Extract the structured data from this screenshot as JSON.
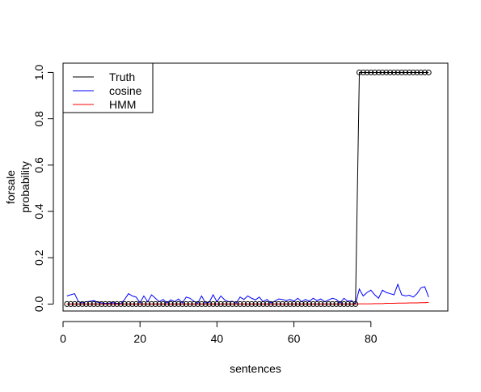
{
  "chart_data": {
    "type": "line",
    "title": "",
    "xlabel": "sentences",
    "ylabel_lines": [
      "forsale",
      "probability"
    ],
    "xlim": [
      0,
      100
    ],
    "ylim": [
      -0.03,
      1.04
    ],
    "xticks": [
      0,
      20,
      40,
      60,
      80
    ],
    "xtick_labels": [
      "0",
      "20",
      "40",
      "60",
      "80"
    ],
    "yticks": [
      0.0,
      0.2,
      0.4,
      0.6,
      0.8,
      1.0
    ],
    "ytick_labels": [
      "0.0",
      "0.2",
      "0.4",
      "0.6",
      "0.8",
      "1.0"
    ],
    "grid": false,
    "legend_position": "top-left",
    "series": [
      {
        "name": "Truth",
        "color": "#000000",
        "markers": "open-circle",
        "x": [
          1,
          2,
          3,
          4,
          5,
          6,
          7,
          8,
          9,
          10,
          11,
          12,
          13,
          14,
          15,
          16,
          17,
          18,
          19,
          20,
          21,
          22,
          23,
          24,
          25,
          26,
          27,
          28,
          29,
          30,
          31,
          32,
          33,
          34,
          35,
          36,
          37,
          38,
          39,
          40,
          41,
          42,
          43,
          44,
          45,
          46,
          47,
          48,
          49,
          50,
          51,
          52,
          53,
          54,
          55,
          56,
          57,
          58,
          59,
          60,
          61,
          62,
          63,
          64,
          65,
          66,
          67,
          68,
          69,
          70,
          71,
          72,
          73,
          74,
          75,
          76,
          77,
          78,
          79,
          80,
          81,
          82,
          83,
          84,
          85,
          86,
          87,
          88,
          89,
          90,
          91,
          92,
          93,
          94,
          95
        ],
        "y": [
          0,
          0,
          0,
          0,
          0,
          0,
          0,
          0,
          0,
          0,
          0,
          0,
          0,
          0,
          0,
          0,
          0,
          0,
          0,
          0,
          0,
          0,
          0,
          0,
          0,
          0,
          0,
          0,
          0,
          0,
          0,
          0,
          0,
          0,
          0,
          0,
          0,
          0,
          0,
          0,
          0,
          0,
          0,
          0,
          0,
          0,
          0,
          0,
          0,
          0,
          0,
          0,
          0,
          0,
          0,
          0,
          0,
          0,
          0,
          0,
          0,
          0,
          0,
          0,
          0,
          0,
          0,
          0,
          0,
          0,
          0,
          0,
          0,
          0,
          0,
          0,
          1,
          1,
          1,
          1,
          1,
          1,
          1,
          1,
          1,
          1,
          1,
          1,
          1,
          1,
          1,
          1,
          1,
          1,
          1
        ]
      },
      {
        "name": "cosine",
        "color": "#0000ff",
        "markers": "none",
        "x": [
          1,
          2,
          3,
          4,
          5,
          6,
          7,
          8,
          9,
          10,
          11,
          12,
          13,
          14,
          15,
          16,
          17,
          18,
          19,
          20,
          21,
          22,
          23,
          24,
          25,
          26,
          27,
          28,
          29,
          30,
          31,
          32,
          33,
          34,
          35,
          36,
          37,
          38,
          39,
          40,
          41,
          42,
          43,
          44,
          45,
          46,
          47,
          48,
          49,
          50,
          51,
          52,
          53,
          54,
          55,
          56,
          57,
          58,
          59,
          60,
          61,
          62,
          63,
          64,
          65,
          66,
          67,
          68,
          69,
          70,
          71,
          72,
          73,
          74,
          75,
          76,
          77,
          78,
          79,
          80,
          81,
          82,
          83,
          84,
          85,
          86,
          87,
          88,
          89,
          90,
          91,
          92,
          93,
          94,
          95
        ],
        "y": [
          0.035,
          0.04,
          0.045,
          0.01,
          0.005,
          0.01,
          0.012,
          0.015,
          0.008,
          0.005,
          0.003,
          0.004,
          0.006,
          0.003,
          0.002,
          0.02,
          0.045,
          0.035,
          0.03,
          0.005,
          0.035,
          0.01,
          0.04,
          0.025,
          0.01,
          0.02,
          0.005,
          0.018,
          0.01,
          0.022,
          0.005,
          0.03,
          0.025,
          0.012,
          0.004,
          0.035,
          0.005,
          0.008,
          0.04,
          0.01,
          0.035,
          0.018,
          0.01,
          0.012,
          0.004,
          0.03,
          0.02,
          0.035,
          0.025,
          0.018,
          0.03,
          0.01,
          0.02,
          0.005,
          0.012,
          0.022,
          0.02,
          0.015,
          0.02,
          0.012,
          0.025,
          0.01,
          0.02,
          0.012,
          0.025,
          0.015,
          0.022,
          0.01,
          0.018,
          0.025,
          0.02,
          0.005,
          0.025,
          0.012,
          0.015,
          0.0,
          0.065,
          0.035,
          0.05,
          0.06,
          0.04,
          0.025,
          0.06,
          0.05,
          0.045,
          0.04,
          0.085,
          0.04,
          0.035,
          0.038,
          0.03,
          0.045,
          0.07,
          0.075,
          0.03
        ]
      },
      {
        "name": "HMM",
        "color": "#ff0000",
        "markers": "none",
        "x": [
          1,
          2,
          3,
          4,
          5,
          6,
          7,
          8,
          9,
          10,
          11,
          12,
          13,
          14,
          15,
          16,
          17,
          18,
          19,
          20,
          21,
          22,
          23,
          24,
          25,
          26,
          27,
          28,
          29,
          30,
          31,
          32,
          33,
          34,
          35,
          36,
          37,
          38,
          39,
          40,
          41,
          42,
          43,
          44,
          45,
          46,
          47,
          48,
          49,
          50,
          51,
          52,
          53,
          54,
          55,
          56,
          57,
          58,
          59,
          60,
          61,
          62,
          63,
          64,
          65,
          66,
          67,
          68,
          69,
          70,
          71,
          72,
          73,
          74,
          75,
          76,
          77,
          78,
          79,
          80,
          81,
          82,
          83,
          84,
          85,
          86,
          87,
          88,
          89,
          90,
          91,
          92,
          93,
          94,
          95
        ],
        "y": [
          0,
          0,
          0,
          0,
          0,
          0,
          0,
          0,
          0,
          0,
          0,
          0,
          0,
          0,
          0,
          0,
          0,
          0,
          0,
          0,
          0,
          0,
          0,
          0,
          0,
          0,
          0,
          0,
          0,
          0,
          0,
          0,
          0,
          0,
          0,
          0,
          0,
          0,
          0,
          0,
          0,
          0,
          0,
          0,
          0,
          0,
          0,
          0,
          0,
          0,
          0,
          0,
          0,
          0,
          0,
          0,
          0,
          0,
          0,
          0,
          0,
          0,
          0,
          0,
          0,
          0,
          0,
          0,
          0,
          0,
          0,
          0,
          0,
          0,
          0,
          0,
          0.001,
          0.001,
          0.001,
          0.001,
          0.002,
          0.002,
          0.002,
          0.003,
          0.003,
          0.003,
          0.004,
          0.004,
          0.004,
          0.005,
          0.005,
          0.005,
          0.006,
          0.006,
          0.007
        ]
      }
    ]
  }
}
